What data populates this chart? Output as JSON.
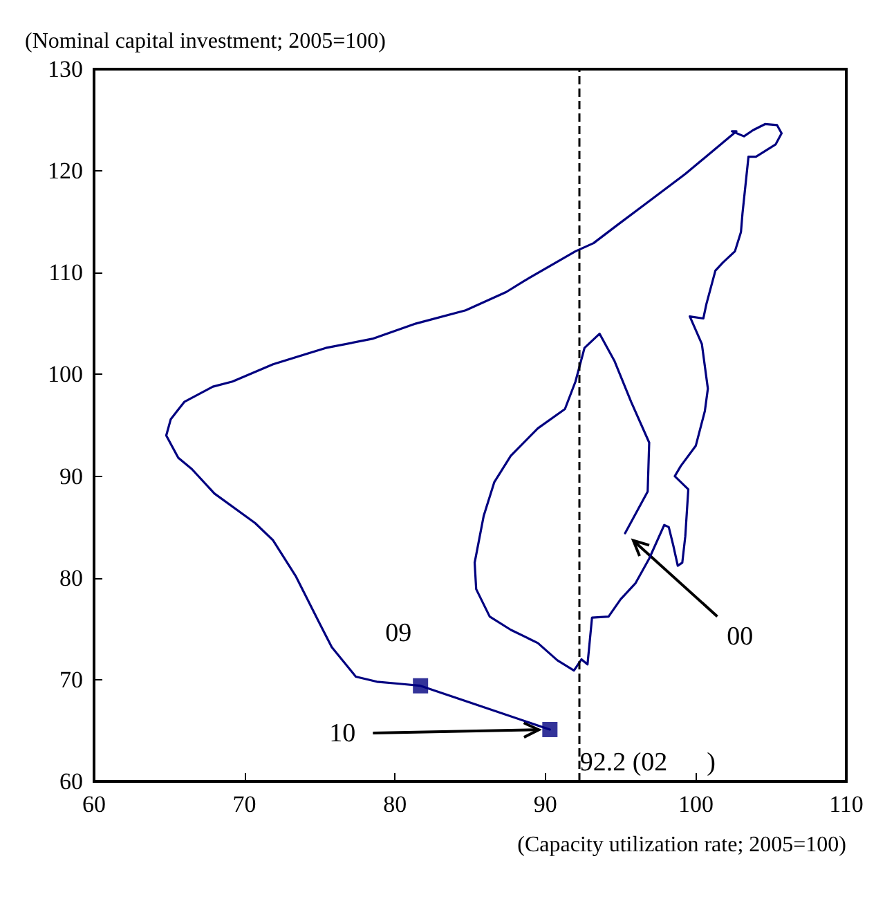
{
  "chart_data": {
    "type": "line",
    "xlabel": "(Capacity utilization rate; 2005=100)",
    "ylabel": "(Nominal capital investment; 2005=100)",
    "xlim": [
      60,
      110
    ],
    "xticks": [
      60,
      70,
      80,
      90,
      100,
      110
    ],
    "ylim": [
      60,
      130
    ],
    "yticks": [
      60,
      70,
      80,
      90,
      100,
      110,
      120,
      130
    ],
    "grid": false,
    "series": [
      {
        "color": "#000080",
        "marker": "none",
        "line_style": "solid",
        "x": [
          95.3,
          96.8,
          96.9,
          95.7,
          94.6,
          93.6,
          92.6,
          92,
          91.3,
          89.5,
          87.7,
          86.6,
          85.9,
          85.3,
          85.4,
          86.3,
          87.7,
          89.5,
          90.8,
          91.9,
          92.4,
          92.8,
          93.1,
          94.2,
          95,
          96,
          96.9,
          97.9,
          98.2,
          98.5,
          98.8,
          99.1,
          99.3,
          99.5,
          98.6,
          99,
          100,
          100.6,
          100.8,
          100.4,
          99.6,
          100.5,
          100.7,
          101.3,
          101.8,
          102.6,
          103,
          103.1,
          103.5,
          104,
          105.3,
          105.7,
          105.4,
          104.6,
          103.8,
          103.2,
          102.4,
          102.7,
          99.3,
          96.6,
          94.8,
          93.2,
          92,
          88.6,
          87.4,
          84.7,
          81.4,
          78.5,
          75.4,
          71.9,
          69.2,
          67.9,
          66,
          65.1,
          64.8,
          65.6,
          66.5,
          68,
          70.7,
          71.9,
          73.4,
          74.9,
          75.8,
          77.4,
          78.8,
          80.3,
          81.7,
          90.3
        ],
        "values": [
          84.4,
          88.5,
          93.3,
          97.3,
          101.3,
          104,
          102.6,
          99.3,
          96.6,
          94.7,
          92,
          89.4,
          86.1,
          81.5,
          78.9,
          76.2,
          74.9,
          73.6,
          71.9,
          70.9,
          72,
          71.5,
          76.1,
          76.2,
          77.9,
          79.5,
          81.9,
          85.2,
          85,
          83.2,
          81.2,
          81.5,
          84.1,
          88.7,
          90,
          91,
          93,
          96.4,
          98.6,
          103,
          105.7,
          105.5,
          106.9,
          110.2,
          111,
          112.1,
          114,
          115.8,
          121.4,
          121.4,
          122.6,
          123.7,
          124.5,
          124.6,
          124,
          123.4,
          123.9,
          123.9,
          119.7,
          116.7,
          114.7,
          112.9,
          112.1,
          109.2,
          108.1,
          106.3,
          105,
          103.5,
          102.6,
          101,
          99.3,
          98.8,
          97.3,
          95.6,
          94,
          91.8,
          90.7,
          88.3,
          85.4,
          83.7,
          80.2,
          75.8,
          73.2,
          70.3,
          69.8,
          69.6,
          69.4,
          65.1
        ]
      },
      {
        "type": "scatter",
        "color": "#000080",
        "marker": "square",
        "x": [
          81.7,
          90.3
        ],
        "values": [
          69.4,
          65.1
        ]
      }
    ],
    "ref_lines": [
      {
        "axis": "x",
        "value": 92.2,
        "label": "92.2 (02      )",
        "color": "#000000",
        "line_style": "dashed"
      }
    ],
    "annotations": [
      "00",
      "09",
      {
        "text": "10",
        "x": 90.3,
        "y": 65.1
      }
    ]
  }
}
